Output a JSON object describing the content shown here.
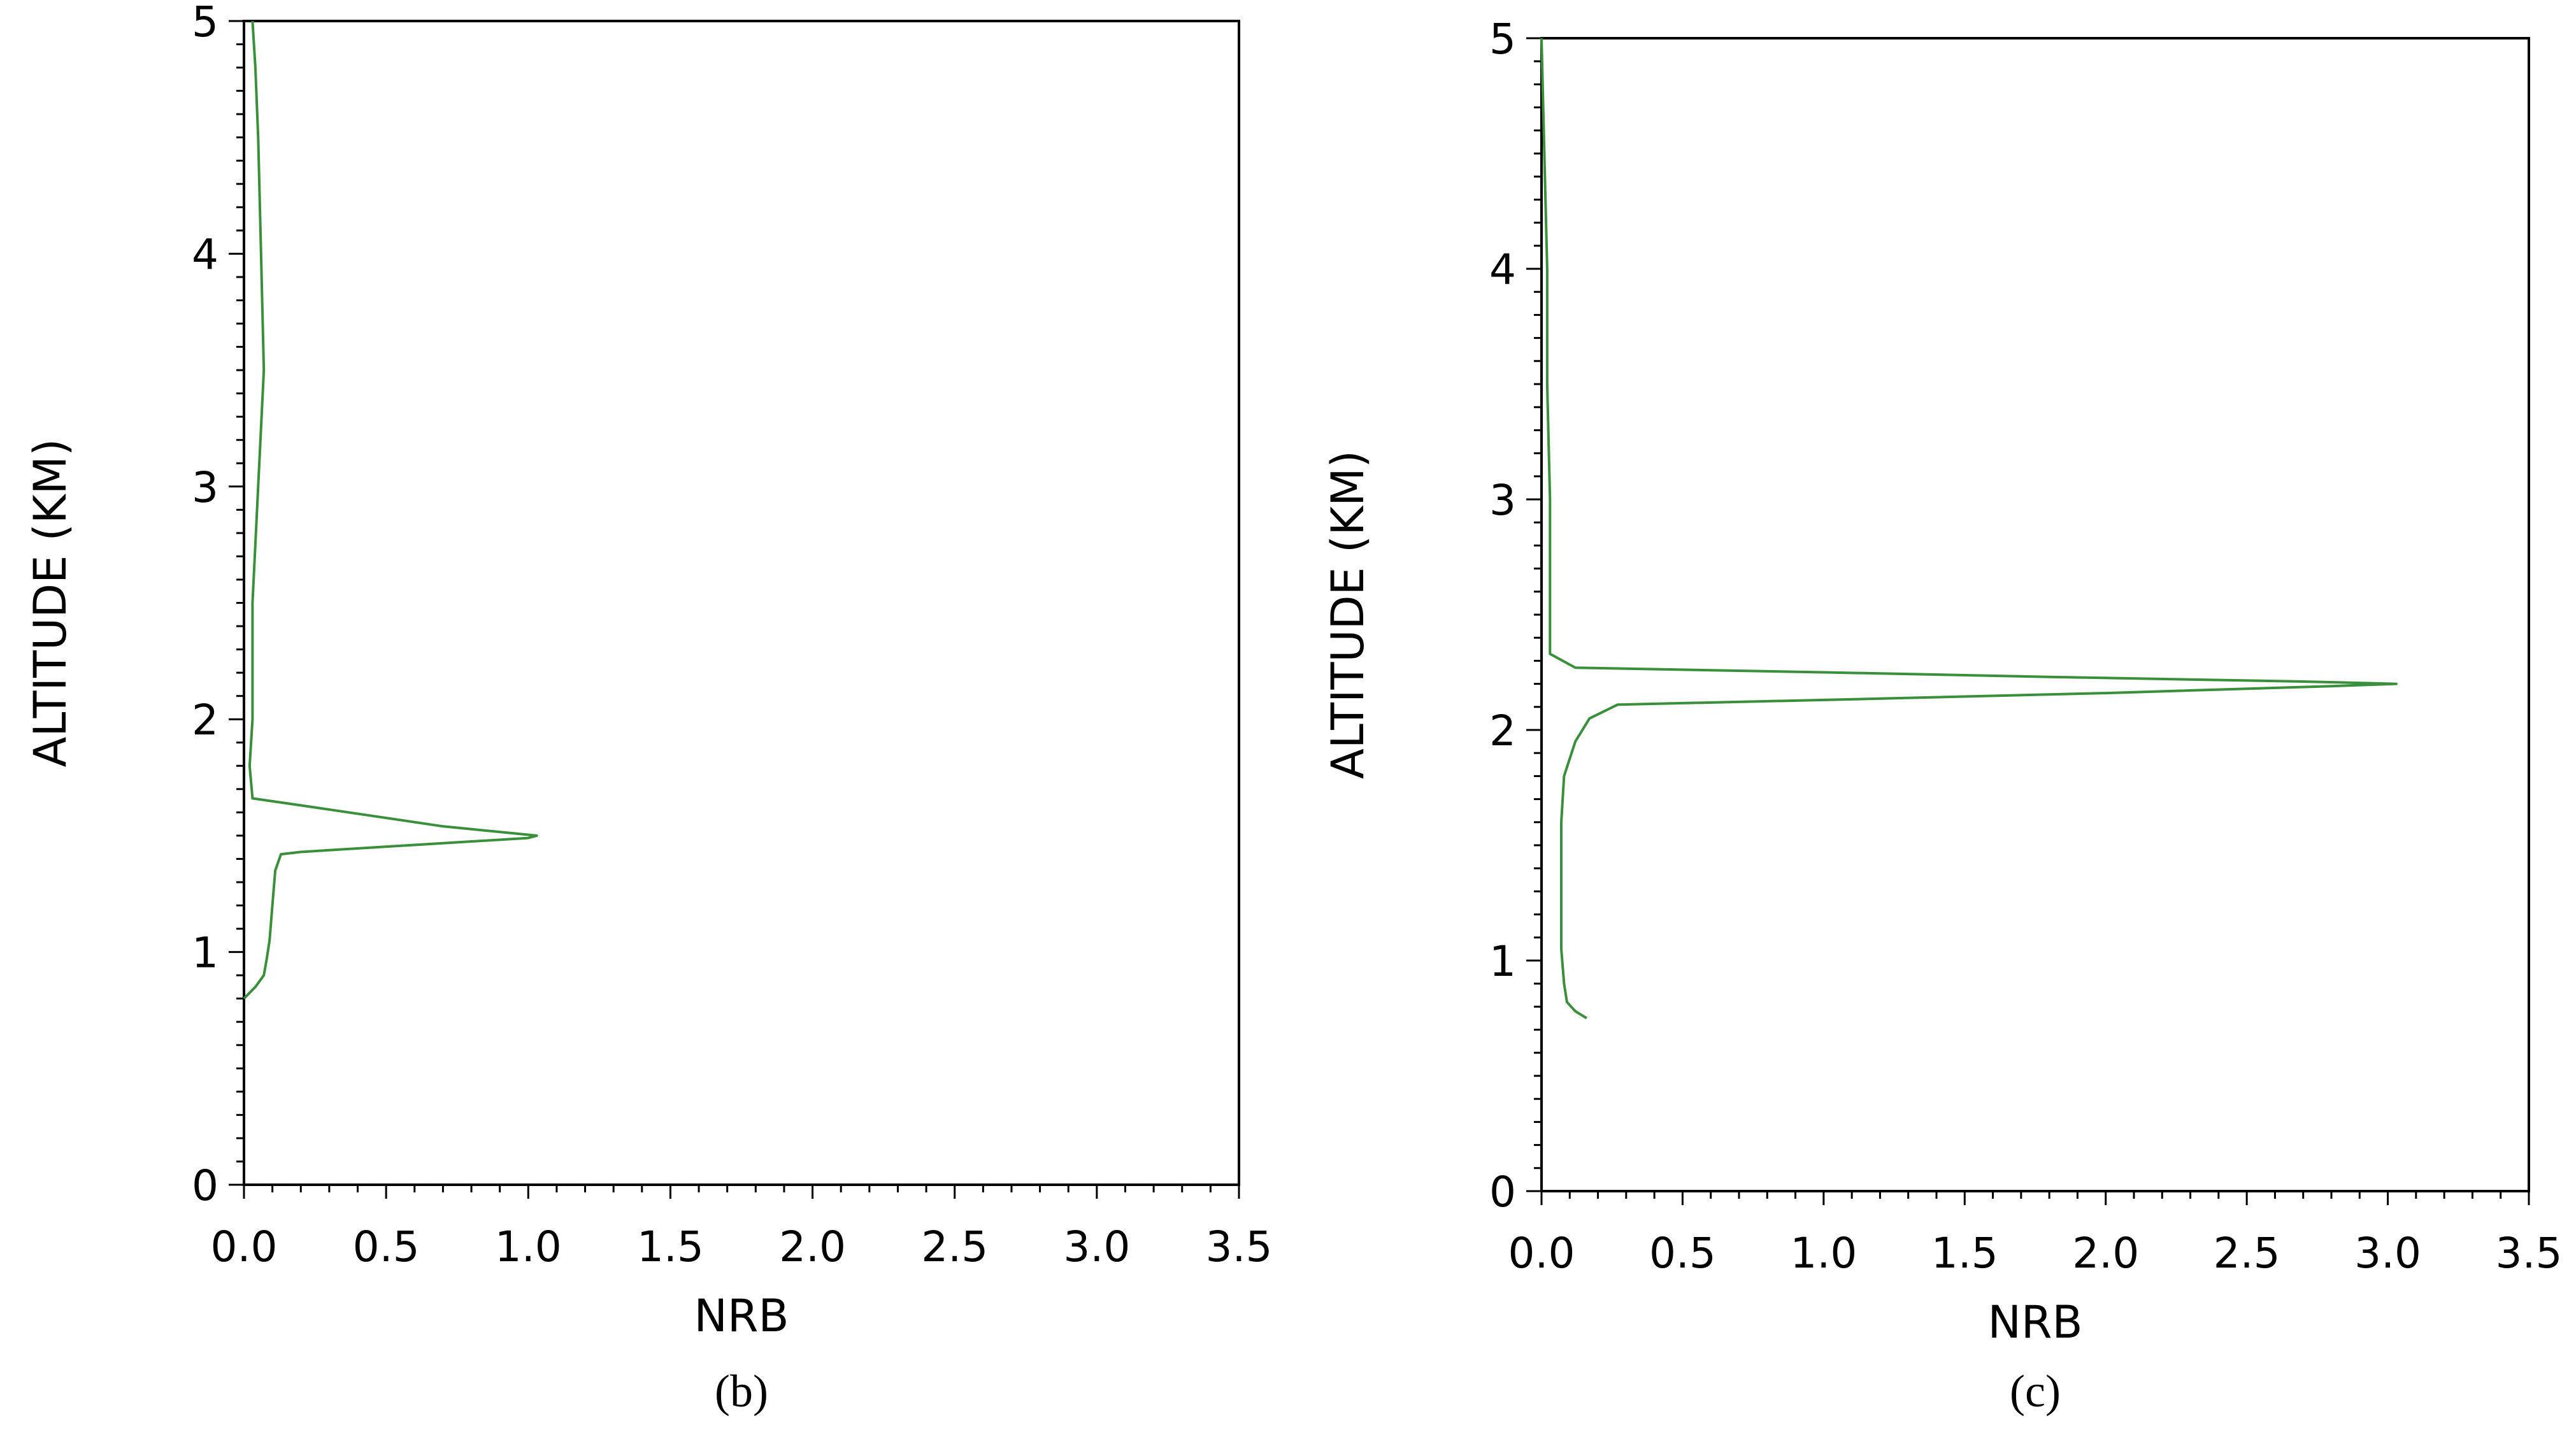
{
  "colors": {
    "series": "#3a8f3a",
    "axis": "#000000",
    "background": "#ffffff"
  },
  "chart_data": [
    {
      "type": "line",
      "panel_label": "(b)",
      "xlabel": "NRB",
      "ylabel": "ALTITUDE (KM)",
      "xlim": [
        0,
        3.5
      ],
      "ylim": [
        0,
        5
      ],
      "xticks": [
        "0.0",
        "0.5",
        "1.0",
        "1.5",
        "2.0",
        "2.5",
        "3.0",
        "3.5"
      ],
      "yticks": [
        "0",
        "1",
        "2",
        "3",
        "4",
        "5"
      ],
      "series": [
        {
          "points": [
            [
              0.0,
              0.8
            ],
            [
              0.04,
              0.85
            ],
            [
              0.07,
              0.9
            ],
            [
              0.08,
              0.97
            ],
            [
              0.09,
              1.05
            ],
            [
              0.1,
              1.2
            ],
            [
              0.11,
              1.35
            ],
            [
              0.13,
              1.42
            ],
            [
              0.2,
              1.43
            ],
            [
              0.6,
              1.46
            ],
            [
              1.0,
              1.49
            ],
            [
              1.03,
              1.5
            ],
            [
              0.7,
              1.54
            ],
            [
              0.2,
              1.63
            ],
            [
              0.03,
              1.66
            ],
            [
              0.02,
              1.8
            ],
            [
              0.03,
              2.0
            ],
            [
              0.03,
              2.5
            ],
            [
              0.05,
              3.0
            ],
            [
              0.07,
              3.5
            ],
            [
              0.06,
              4.0
            ],
            [
              0.05,
              4.5
            ],
            [
              0.04,
              4.8
            ],
            [
              0.03,
              5.0
            ]
          ]
        }
      ]
    },
    {
      "type": "line",
      "panel_label": "(c)",
      "xlabel": "NRB",
      "ylabel": "ALTITUDE (KM)",
      "xlim": [
        0,
        3.5
      ],
      "ylim": [
        0,
        5
      ],
      "xticks": [
        "0.0",
        "0.5",
        "1.0",
        "1.5",
        "2.0",
        "2.5",
        "3.0",
        "3.5"
      ],
      "yticks": [
        "0",
        "1",
        "2",
        "3",
        "4",
        "5"
      ],
      "series": [
        {
          "points": [
            [
              0.16,
              0.75
            ],
            [
              0.12,
              0.78
            ],
            [
              0.09,
              0.82
            ],
            [
              0.08,
              0.9
            ],
            [
              0.07,
              1.05
            ],
            [
              0.07,
              1.3
            ],
            [
              0.07,
              1.6
            ],
            [
              0.08,
              1.8
            ],
            [
              0.12,
              1.95
            ],
            [
              0.17,
              2.05
            ],
            [
              0.27,
              2.11
            ],
            [
              1.0,
              2.13
            ],
            [
              2.0,
              2.16
            ],
            [
              2.8,
              2.19
            ],
            [
              3.03,
              2.2
            ],
            [
              2.7,
              2.21
            ],
            [
              1.8,
              2.23
            ],
            [
              1.0,
              2.25
            ],
            [
              0.12,
              2.27
            ],
            [
              0.03,
              2.33
            ],
            [
              0.03,
              2.5
            ],
            [
              0.03,
              3.0
            ],
            [
              0.02,
              3.5
            ],
            [
              0.02,
              4.0
            ],
            [
              0.01,
              4.5
            ],
            [
              0.0,
              5.0
            ]
          ]
        }
      ]
    }
  ]
}
